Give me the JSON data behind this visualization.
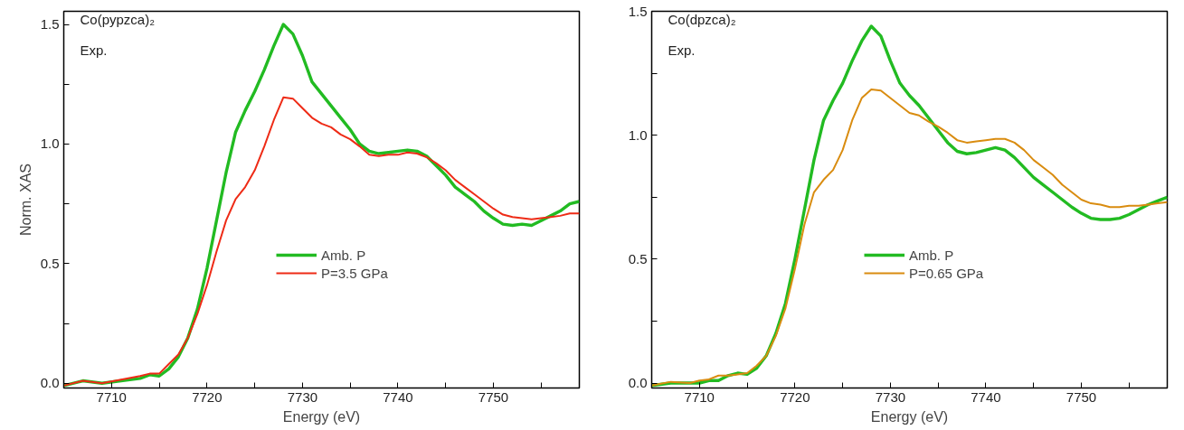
{
  "chart_data": [
    {
      "type": "line",
      "annotations": [
        "Co(pypzca)₂",
        "Exp."
      ],
      "xlabel": "Energy (eV)",
      "ylabel": "Norm. XAS",
      "x": [
        7705,
        7707,
        7709,
        7711,
        7713,
        7714,
        7715,
        7716,
        7717,
        7718,
        7719,
        7720,
        7721,
        7722,
        7723,
        7724,
        7725,
        7726,
        7727,
        7728,
        7729,
        7730,
        7731,
        7732,
        7733,
        7734,
        7735,
        7736,
        7737,
        7738,
        7739,
        7740,
        7741,
        7742,
        7743,
        7744,
        7745,
        7746,
        7747,
        7748,
        7749,
        7750,
        7751,
        7752,
        7753,
        7754,
        7755,
        7756,
        7757,
        7758,
        7759
      ],
      "series": [
        {
          "name": "Amb. P",
          "color": "#22bb22",
          "values": [
            -0.01,
            0.01,
            0.0,
            0.01,
            0.02,
            0.035,
            0.03,
            0.06,
            0.11,
            0.19,
            0.31,
            0.48,
            0.68,
            0.88,
            1.05,
            1.14,
            1.22,
            1.31,
            1.41,
            1.5,
            1.46,
            1.37,
            1.26,
            1.21,
            1.16,
            1.11,
            1.06,
            1.0,
            0.97,
            0.96,
            0.965,
            0.97,
            0.975,
            0.97,
            0.95,
            0.91,
            0.87,
            0.82,
            0.79,
            0.76,
            0.72,
            0.69,
            0.665,
            0.66,
            0.665,
            0.66,
            0.68,
            0.7,
            0.72,
            0.75,
            0.76
          ]
        },
        {
          "name": "P=3.5 GPa",
          "color": "#ee2b16",
          "values": [
            -0.01,
            0.01,
            0.0,
            0.015,
            0.03,
            0.04,
            0.04,
            0.08,
            0.12,
            0.19,
            0.29,
            0.41,
            0.55,
            0.68,
            0.77,
            0.82,
            0.89,
            0.99,
            1.1,
            1.195,
            1.19,
            1.15,
            1.11,
            1.085,
            1.07,
            1.04,
            1.02,
            0.99,
            0.955,
            0.95,
            0.955,
            0.955,
            0.965,
            0.96,
            0.945,
            0.92,
            0.89,
            0.85,
            0.82,
            0.79,
            0.76,
            0.73,
            0.705,
            0.695,
            0.69,
            0.685,
            0.69,
            0.695,
            0.7,
            0.71,
            0.71
          ]
        }
      ],
      "xlim": [
        7705,
        7759
      ],
      "ylim": [
        -0.02,
        1.555
      ],
      "xticks": [
        {
          "value": 7705,
          "label": null
        },
        7710,
        {
          "value": 7715,
          "label": null
        },
        7720,
        {
          "value": 7725,
          "label": null
        },
        7730,
        {
          "value": 7735,
          "label": null
        },
        7740,
        {
          "value": 7745,
          "label": null
        },
        7750,
        {
          "value": 7755,
          "label": null
        }
      ],
      "yticks": [
        {
          "value": 0,
          "label": "0.0"
        },
        {
          "value": 0.25,
          "label": null
        },
        {
          "value": 0.5,
          "label": "0.5"
        },
        {
          "value": 0.75,
          "label": null
        },
        {
          "value": 1,
          "label": "1.0"
        },
        {
          "value": 1.25,
          "label": null
        },
        {
          "value": 1.5,
          "label": "1.5"
        }
      ],
      "legend": "center",
      "grid": false,
      "line_style": "solid"
    },
    {
      "type": "line",
      "annotations": [
        "Co(dpzca)₂",
        "Exp."
      ],
      "xlabel": "Energy (eV)",
      "x": [
        7705,
        7707,
        7709,
        7710,
        7711,
        7712,
        7713,
        7714,
        7715,
        7716,
        7717,
        7718,
        7719,
        7720,
        7721,
        7722,
        7723,
        7724,
        7725,
        7726,
        7727,
        7728,
        7729,
        7730,
        7731,
        7732,
        7733,
        7734,
        7735,
        7736,
        7737,
        7738,
        7739,
        7740,
        7741,
        7742,
        7743,
        7744,
        7745,
        7746,
        7747,
        7748,
        7749,
        7750,
        7751,
        7752,
        7753,
        7754,
        7755,
        7756,
        7757,
        7758,
        7759
      ],
      "series": [
        {
          "name": "Amb. P",
          "color": "#22bb22",
          "values": [
            -0.01,
            0.0,
            0.0,
            0.0,
            0.01,
            0.01,
            0.03,
            0.04,
            0.035,
            0.06,
            0.11,
            0.2,
            0.32,
            0.5,
            0.7,
            0.9,
            1.06,
            1.14,
            1.21,
            1.3,
            1.38,
            1.44,
            1.4,
            1.3,
            1.21,
            1.16,
            1.12,
            1.07,
            1.02,
            0.97,
            0.935,
            0.925,
            0.93,
            0.94,
            0.95,
            0.94,
            0.91,
            0.87,
            0.83,
            0.8,
            0.77,
            0.74,
            0.71,
            0.685,
            0.665,
            0.66,
            0.66,
            0.665,
            0.68,
            0.7,
            0.72,
            0.735,
            0.75
          ]
        },
        {
          "name": "P=0.65 GPa",
          "color": "#d98c10",
          "values": [
            -0.01,
            0.005,
            0.0,
            0.01,
            0.015,
            0.03,
            0.03,
            0.035,
            0.04,
            0.07,
            0.11,
            0.19,
            0.3,
            0.46,
            0.64,
            0.77,
            0.82,
            0.86,
            0.94,
            1.06,
            1.15,
            1.185,
            1.18,
            1.15,
            1.12,
            1.09,
            1.08,
            1.055,
            1.035,
            1.01,
            0.98,
            0.97,
            0.975,
            0.98,
            0.985,
            0.985,
            0.97,
            0.94,
            0.9,
            0.87,
            0.84,
            0.8,
            0.77,
            0.74,
            0.725,
            0.72,
            0.71,
            0.71,
            0.715,
            0.715,
            0.72,
            0.725,
            0.73
          ]
        }
      ],
      "xlim": [
        7705,
        7759
      ],
      "ylim": [
        -0.02,
        1.5
      ],
      "xticks": [
        {
          "value": 7705,
          "label": null
        },
        7710,
        {
          "value": 7715,
          "label": null
        },
        7720,
        {
          "value": 7725,
          "label": null
        },
        7730,
        {
          "value": 7735,
          "label": null
        },
        7740,
        {
          "value": 7745,
          "label": null
        },
        7750,
        {
          "value": 7755,
          "label": null
        }
      ],
      "yticks": [
        {
          "value": 0,
          "label": "0.0"
        },
        {
          "value": 0.25,
          "label": null
        },
        {
          "value": 0.5,
          "label": "0.5"
        },
        {
          "value": 0.75,
          "label": null
        },
        {
          "value": 1,
          "label": "1.0"
        },
        {
          "value": 1.25,
          "label": null
        },
        {
          "value": 1.5,
          "label": "1.5"
        }
      ],
      "legend": "center",
      "grid": false,
      "line_style": "solid"
    }
  ]
}
